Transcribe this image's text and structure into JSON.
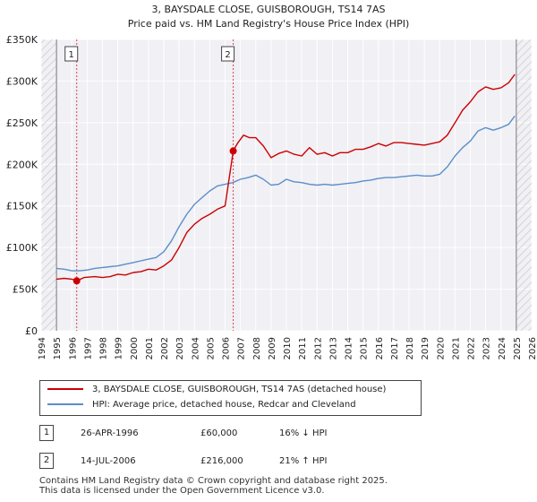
{
  "chart_data": {
    "type": "line",
    "title": "3, BAYSDALE CLOSE, GUISBOROUGH, TS14 7AS",
    "subtitle": "Price paid vs. HM Land Registry's House Price Index (HPI)",
    "xlim": [
      1994,
      2026
    ],
    "ylim": [
      0,
      350000
    ],
    "x_ticks": [
      "1994",
      "1995",
      "1996",
      "1997",
      "1998",
      "1999",
      "2000",
      "2001",
      "2002",
      "2003",
      "2004",
      "2005",
      "2006",
      "2007",
      "2008",
      "2009",
      "2010",
      "2011",
      "2012",
      "2013",
      "2014",
      "2015",
      "2016",
      "2017",
      "2018",
      "2019",
      "2020",
      "2021",
      "2022",
      "2023",
      "2024",
      "2025",
      "2026"
    ],
    "y_ticks": [
      {
        "value": 0,
        "label": "£0"
      },
      {
        "value": 50000,
        "label": "£50K"
      },
      {
        "value": 100000,
        "label": "£100K"
      },
      {
        "value": 150000,
        "label": "£150K"
      },
      {
        "value": 200000,
        "label": "£200K"
      },
      {
        "value": 250000,
        "label": "£250K"
      },
      {
        "value": 300000,
        "label": "£300K"
      },
      {
        "value": 350000,
        "label": "£350K"
      }
    ],
    "hatched_regions": [
      [
        1994,
        1995
      ],
      [
        2025,
        2026
      ]
    ],
    "series": [
      {
        "name": "3, BAYSDALE CLOSE, GUISBOROUGH, TS14 7AS (detached house)",
        "color": "#cc0000",
        "x": [
          1995.0,
          1995.5,
          1996.0,
          1996.32,
          1996.8,
          1997.5,
          1998.0,
          1998.5,
          1999.0,
          1999.5,
          2000.0,
          2000.5,
          2001.0,
          2001.5,
          2002.0,
          2002.5,
          2003.0,
          2003.5,
          2004.0,
          2004.5,
          2005.0,
          2005.5,
          2006.0,
          2006.53,
          2006.8,
          2007.2,
          2007.6,
          2008.0,
          2008.5,
          2009.0,
          2009.5,
          2010.0,
          2010.5,
          2011.0,
          2011.5,
          2012.0,
          2012.5,
          2013.0,
          2013.5,
          2014.0,
          2014.5,
          2015.0,
          2015.5,
          2016.0,
          2016.5,
          2017.0,
          2017.5,
          2018.0,
          2018.5,
          2019.0,
          2019.5,
          2020.0,
          2020.5,
          2021.0,
          2021.5,
          2022.0,
          2022.5,
          2023.0,
          2023.5,
          2024.0,
          2024.5,
          2024.9
        ],
        "y": [
          62000,
          63000,
          62000,
          60000,
          64000,
          65000,
          64000,
          65000,
          68000,
          67000,
          70000,
          71000,
          74000,
          73000,
          78000,
          85000,
          100000,
          118000,
          128000,
          135000,
          140000,
          146000,
          150000,
          216000,
          225000,
          235000,
          232000,
          232000,
          222000,
          208000,
          213000,
          216000,
          212000,
          210000,
          220000,
          212000,
          214000,
          210000,
          214000,
          214000,
          218000,
          218000,
          221000,
          225000,
          222000,
          226000,
          226000,
          225000,
          224000,
          223000,
          225000,
          227000,
          235000,
          250000,
          265000,
          275000,
          287000,
          293000,
          290000,
          292000,
          298000,
          308000
        ]
      },
      {
        "name": "HPI: Average price, detached house, Redcar and Cleveland",
        "color": "#5b8ec9",
        "x": [
          1995.0,
          1995.5,
          1996.0,
          1996.5,
          1997.0,
          1997.5,
          1998.0,
          1998.5,
          1999.0,
          1999.5,
          2000.0,
          2000.5,
          2001.0,
          2001.5,
          2002.0,
          2002.5,
          2003.0,
          2003.5,
          2004.0,
          2004.5,
          2005.0,
          2005.5,
          2006.0,
          2006.5,
          2007.0,
          2007.5,
          2008.0,
          2008.5,
          2009.0,
          2009.5,
          2010.0,
          2010.5,
          2011.0,
          2011.5,
          2012.0,
          2012.5,
          2013.0,
          2013.5,
          2014.0,
          2014.5,
          2015.0,
          2015.5,
          2016.0,
          2016.5,
          2017.0,
          2017.5,
          2018.0,
          2018.5,
          2019.0,
          2019.5,
          2020.0,
          2020.5,
          2021.0,
          2021.5,
          2022.0,
          2022.5,
          2023.0,
          2023.5,
          2024.0,
          2024.5,
          2024.9
        ],
        "y": [
          75000,
          74000,
          72000,
          72000,
          73000,
          75000,
          76000,
          77000,
          78000,
          80000,
          82000,
          84000,
          86000,
          88000,
          95000,
          108000,
          125000,
          140000,
          152000,
          160000,
          168000,
          174000,
          176000,
          178000,
          182000,
          184000,
          187000,
          182000,
          175000,
          176000,
          182000,
          179000,
          178000,
          176000,
          175000,
          176000,
          175000,
          176000,
          177000,
          178000,
          180000,
          181000,
          183000,
          184000,
          184000,
          185000,
          186000,
          187000,
          186000,
          186000,
          188000,
          197000,
          210000,
          220000,
          228000,
          240000,
          244000,
          241000,
          244000,
          248000,
          258000
        ]
      }
    ],
    "markers": [
      {
        "label": "1",
        "x": 1996.32,
        "y": 60000
      },
      {
        "label": "2",
        "x": 2006.53,
        "y": 216000
      }
    ]
  },
  "legend": {
    "property_label": "3, BAYSDALE CLOSE, GUISBOROUGH, TS14 7AS (detached house)",
    "hpi_label": "HPI: Average price, detached house, Redcar and Cleveland",
    "property_color": "#cc0000",
    "hpi_color": "#5b8ec9"
  },
  "transactions": [
    {
      "num": "1",
      "date": "26-APR-1996",
      "price": "£60,000",
      "hpi": "16% ↓ HPI"
    },
    {
      "num": "2",
      "date": "14-JUL-2006",
      "price": "£216,000",
      "hpi": "21% ↑ HPI"
    }
  ],
  "footer": {
    "line1": "Contains HM Land Registry data © Crown copyright and database right 2025.",
    "line2": "This data is licensed under the Open Government Licence v3.0."
  }
}
